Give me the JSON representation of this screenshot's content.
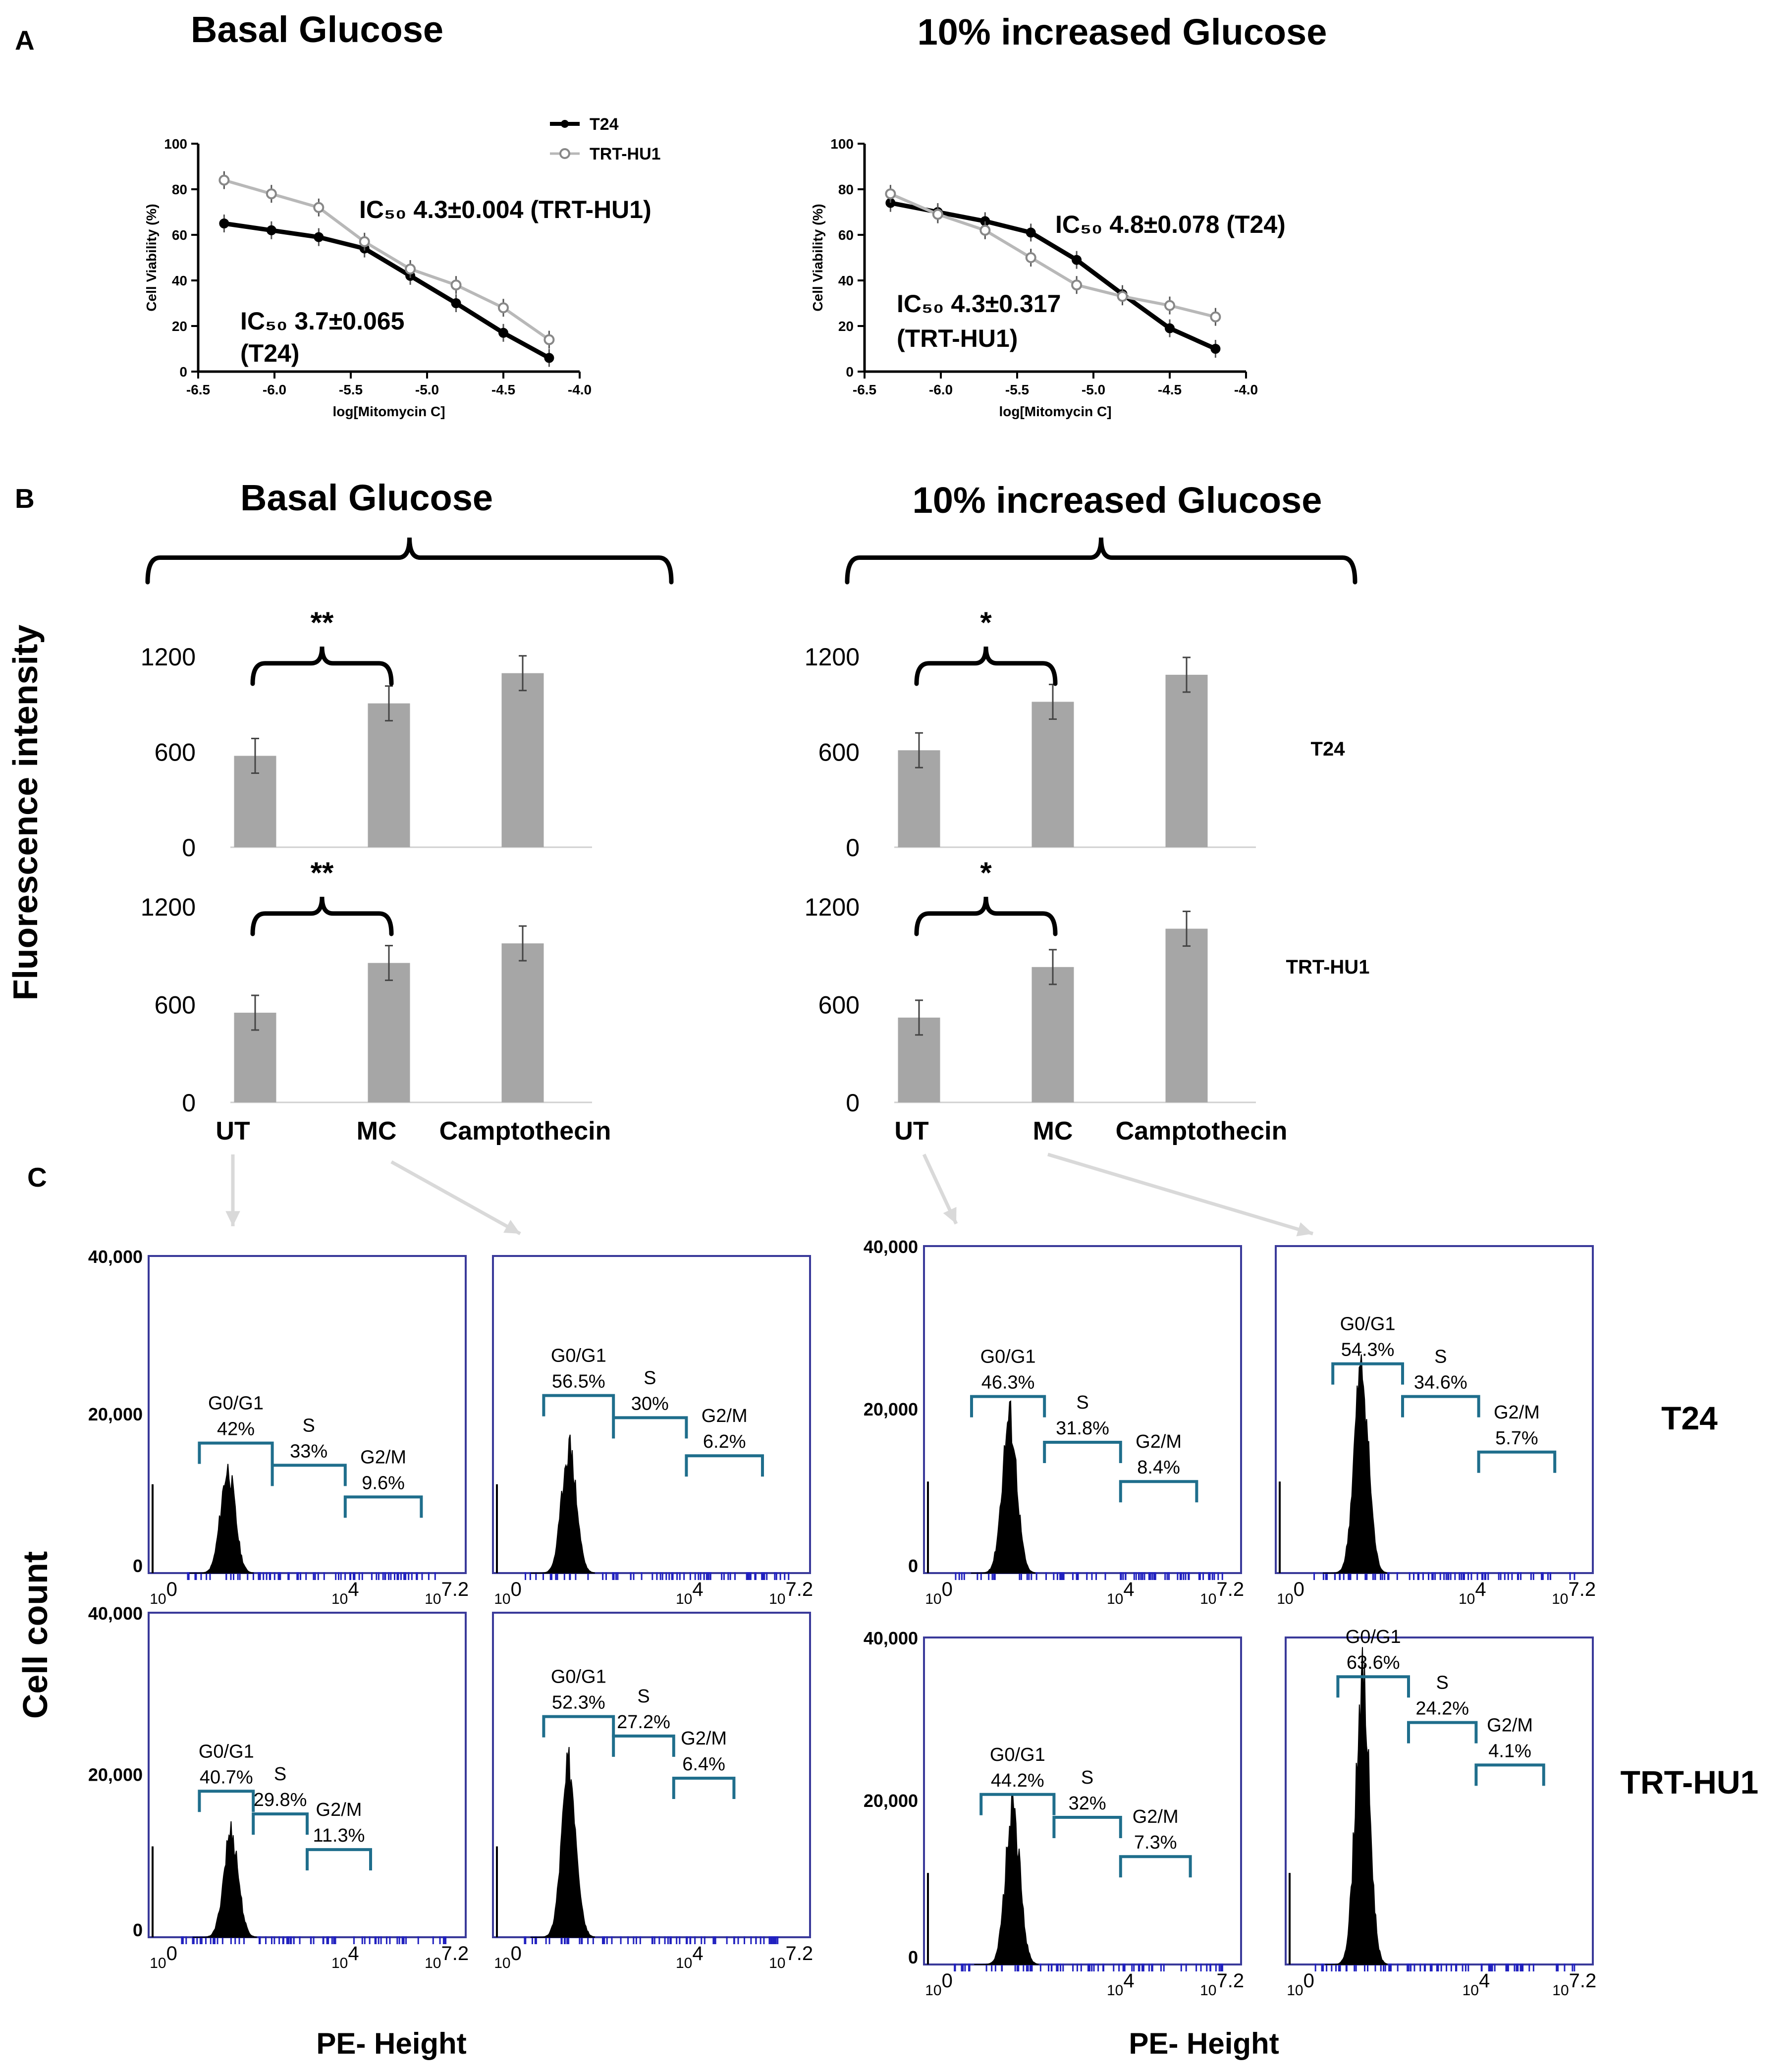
{
  "panels": {
    "A": {
      "label": "A",
      "left": {
        "title": "Basal Glucose",
        "ylabel": "Cell Viability (%)",
        "xlabel": "log[Mitomycin C]",
        "legend": [
          "T24",
          "TRT-HU1"
        ],
        "ic50_a": "IC₅₀ 4.3±0.004 (TRT-HU1)",
        "ic50_b_line1": "IC₅₀ 3.7±0.065",
        "ic50_b_line2": "(T24)"
      },
      "right": {
        "title": "10% increased Glucose",
        "ylabel": "Cell Viability (%)",
        "xlabel": "log[Mitomycin C]",
        "ic50_a": "IC₅₀ 4.8±0.078 (T24)",
        "ic50_b_line1": "IC₅₀ 4.3±0.317",
        "ic50_b_line2": "(TRT-HU1)"
      }
    },
    "B": {
      "label": "B",
      "ylabel": "Fluorescence intensity",
      "left_title": "Basal Glucose",
      "right_title": "10% increased Glucose",
      "row_labels": [
        "T24",
        "TRT-HU1"
      ],
      "sig_left": [
        "**",
        "**"
      ],
      "sig_right": [
        "*",
        "*"
      ],
      "categories": [
        "UT",
        "MC",
        "Camptothecin"
      ]
    },
    "C": {
      "label": "C",
      "ylabel": "Cell count",
      "xlabel": "PE- Height",
      "row_labels": [
        "T24",
        "TRT-HU1"
      ]
    }
  },
  "chart_data": [
    {
      "id": "A-basal",
      "type": "line",
      "title": "Basal Glucose",
      "xlabel": "log[Mitomycin C]",
      "ylabel": "Cell Viability (%)",
      "xlim": [
        -6.5,
        -4.0
      ],
      "ylim": [
        0,
        100
      ],
      "xticks": [
        "-6.5",
        "-6.0",
        "-5.5",
        "-5.0",
        "-4.5",
        "-4.0"
      ],
      "yticks": [
        "0",
        "20",
        "40",
        "60",
        "80",
        "100"
      ],
      "x": [
        -6.33,
        -6.02,
        -5.71,
        -5.41,
        -5.11,
        -4.81,
        -4.5,
        -4.2
      ],
      "series": [
        {
          "name": "T24",
          "values": [
            65,
            62,
            59,
            54,
            42,
            30,
            17,
            6
          ]
        },
        {
          "name": "TRT-HU1",
          "values": [
            84,
            78,
            72,
            57,
            45,
            38,
            28,
            14
          ]
        }
      ]
    },
    {
      "id": "A-increased",
      "type": "line",
      "title": "10% increased Glucose",
      "xlabel": "log[Mitomycin C]",
      "ylabel": "Cell Viability (%)",
      "xlim": [
        -6.5,
        -4.0
      ],
      "ylim": [
        0,
        100
      ],
      "xticks": [
        "-6.5",
        "-6.0",
        "-5.5",
        "-5.0",
        "-4.5",
        "-4.0"
      ],
      "yticks": [
        "0",
        "20",
        "40",
        "60",
        "80",
        "100"
      ],
      "x": [
        -6.33,
        -6.02,
        -5.71,
        -5.41,
        -5.11,
        -4.81,
        -4.5,
        -4.2
      ],
      "series": [
        {
          "name": "T24",
          "values": [
            74,
            70,
            66,
            61,
            49,
            34,
            19,
            10
          ]
        },
        {
          "name": "TRT-HU1",
          "values": [
            78,
            69,
            62,
            50,
            38,
            33,
            29,
            24
          ]
        }
      ]
    },
    {
      "id": "B-basal-T24",
      "type": "bar",
      "categories": [
        "UT",
        "MC",
        "Camptothecin"
      ],
      "values": [
        575,
        905,
        1095
      ],
      "ylim": [
        0,
        1200
      ],
      "yticks": [
        "0",
        "600",
        "1200"
      ]
    },
    {
      "id": "B-increased-T24",
      "type": "bar",
      "categories": [
        "UT",
        "MC",
        "Camptothecin"
      ],
      "values": [
        610,
        915,
        1085
      ],
      "ylim": [
        0,
        1200
      ],
      "yticks": [
        "0",
        "600",
        "1200"
      ]
    },
    {
      "id": "B-basal-TRT",
      "type": "bar",
      "categories": [
        "UT",
        "MC",
        "Camptothecin"
      ],
      "values": [
        550,
        855,
        975
      ],
      "ylim": [
        0,
        1200
      ],
      "yticks": [
        "0",
        "600",
        "1200"
      ]
    },
    {
      "id": "B-increased-TRT",
      "type": "bar",
      "categories": [
        "UT",
        "MC",
        "Camptothecin"
      ],
      "values": [
        520,
        830,
        1065
      ],
      "ylim": [
        0,
        1200
      ],
      "yticks": [
        "0",
        "600",
        "1200"
      ]
    },
    {
      "id": "C-basal-UT-T24",
      "type": "histogram",
      "gates": [
        {
          "name": "G0/G1",
          "value": "42%"
        },
        {
          "name": "S",
          "value": "33%"
        },
        {
          "name": "G2/M",
          "value": "9.6%"
        }
      ]
    },
    {
      "id": "C-basal-MC-T24",
      "type": "histogram",
      "gates": [
        {
          "name": "G0/G1",
          "value": "56.5%"
        },
        {
          "name": "S",
          "value": "30%"
        },
        {
          "name": "G2/M",
          "value": "6.2%"
        }
      ]
    },
    {
      "id": "C-inc-UT-T24",
      "type": "histogram",
      "gates": [
        {
          "name": "G0/G1",
          "value": "46.3%"
        },
        {
          "name": "S",
          "value": "31.8%"
        },
        {
          "name": "G2/M",
          "value": "8.4%"
        }
      ]
    },
    {
      "id": "C-inc-MC-T24",
      "type": "histogram",
      "gates": [
        {
          "name": "G0/G1",
          "value": "54.3%"
        },
        {
          "name": "S",
          "value": "34.6%"
        },
        {
          "name": "G2/M",
          "value": "5.7%"
        }
      ]
    },
    {
      "id": "C-basal-UT-TRT",
      "type": "histogram",
      "gates": [
        {
          "name": "G0/G1",
          "value": "40.7%"
        },
        {
          "name": "S",
          "value": "29.8%"
        },
        {
          "name": "G2/M",
          "value": "11.3%"
        }
      ]
    },
    {
      "id": "C-basal-MC-TRT",
      "type": "histogram",
      "gates": [
        {
          "name": "G0/G1",
          "value": "52.3%"
        },
        {
          "name": "S",
          "value": "27.2%"
        },
        {
          "name": "G2/M",
          "value": "6.4%"
        }
      ]
    },
    {
      "id": "C-inc-UT-TRT",
      "type": "histogram",
      "gates": [
        {
          "name": "G0/G1",
          "value": "44.2%"
        },
        {
          "name": "S",
          "value": "32%"
        },
        {
          "name": "G2/M",
          "value": "7.3%"
        }
      ]
    },
    {
      "id": "C-inc-MC-TRT",
      "type": "histogram",
      "gates": [
        {
          "name": "G0/G1",
          "value": "63.6%"
        },
        {
          "name": "S",
          "value": "24.2%"
        },
        {
          "name": "G2/M",
          "value": "4.1%"
        }
      ]
    }
  ],
  "histogram_axes": {
    "yticks": [
      "0",
      "20,000",
      "40,000"
    ],
    "xticks": [
      "10^0",
      "10^4",
      "10^7.2"
    ]
  },
  "colors": {
    "bar": "#a6a6a6",
    "gate": "#1f6e8c",
    "hist_frame": "#3a3a9a",
    "tick_rug": "#2020c0",
    "arrow": "#d9d9d9",
    "t24_line": "#000000",
    "trt_line": "#b8b8b8"
  }
}
